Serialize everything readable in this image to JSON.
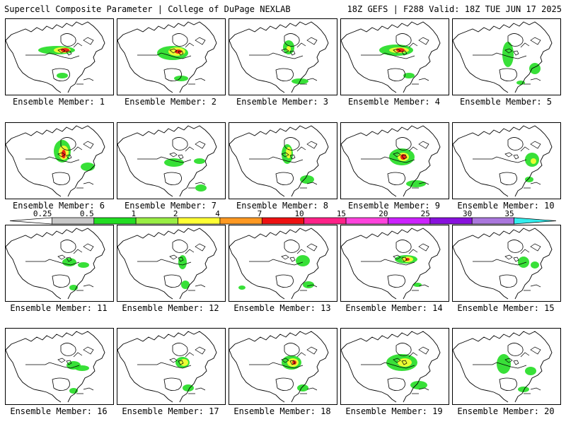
{
  "header": {
    "left_title": "Supercell Composite Parameter | College of DuPage NEXLAB",
    "right_title": "18Z GEFS | F288 Valid: 18Z TUE JUN 17 2025"
  },
  "members": [
    "Ensemble Member: 1",
    "Ensemble Member: 2",
    "Ensemble Member: 3",
    "Ensemble Member: 4",
    "Ensemble Member: 5",
    "Ensemble Member: 6",
    "Ensemble Member: 7",
    "Ensemble Member: 8",
    "Ensemble Member: 9",
    "Ensemble Member: 10",
    "Ensemble Member: 11",
    "Ensemble Member: 12",
    "Ensemble Member: 13",
    "Ensemble Member: 14",
    "Ensemble Member: 15",
    "Ensemble Member: 16",
    "Ensemble Member: 17",
    "Ensemble Member: 18",
    "Ensemble Member: 19",
    "Ensemble Member: 20"
  ],
  "colorbar": {
    "ticks": [
      "0.25",
      "0.5",
      "1",
      "2",
      "4",
      "7",
      "10",
      "15",
      "20",
      "25",
      "30",
      "35"
    ],
    "colors": [
      "#ffffff",
      "#c8c8c8",
      "#22dd22",
      "#99ee44",
      "#ffff33",
      "#ff9922",
      "#ee1111",
      "#ff2288",
      "#ff44dd",
      "#cc22ff",
      "#8811dd",
      "#aa77dd",
      "#33eeee"
    ]
  }
}
